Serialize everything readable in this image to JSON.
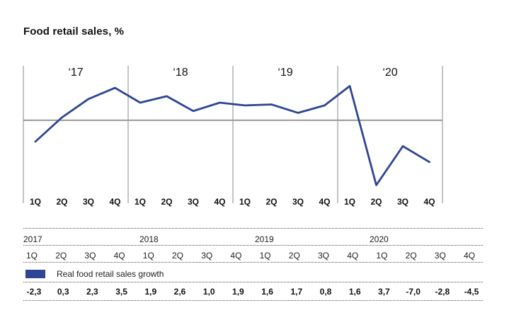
{
  "colors": {
    "line": "#2E4593",
    "frame": "#888888",
    "zero": "#999999"
  },
  "chart_data": {
    "type": "line",
    "title": "Food retail sales, %",
    "year_labels": [
      "‘17",
      "‘18",
      "‘19",
      "‘20"
    ],
    "categories": [
      "1Q",
      "2Q",
      "3Q",
      "4Q",
      "1Q",
      "2Q",
      "3Q",
      "4Q",
      "1Q",
      "2Q",
      "3Q",
      "4Q",
      "1Q",
      "2Q",
      "3Q",
      "4Q"
    ],
    "series": [
      {
        "name": "Real food retail sales growth",
        "values": [
          -2.3,
          0.3,
          2.3,
          3.5,
          1.9,
          2.6,
          1.0,
          1.9,
          1.6,
          1.7,
          0.8,
          1.6,
          3.7,
          -7.0,
          -2.8,
          -4.5
        ]
      }
    ],
    "ylim": [
      -7.5,
      4.5
    ],
    "grid": false
  },
  "table": {
    "years": [
      "2017",
      "2018",
      "2019",
      "2020"
    ],
    "quarters": [
      "1Q",
      "2Q",
      "3Q",
      "4Q",
      "1Q",
      "2Q",
      "3Q",
      "4Q",
      "1Q",
      "2Q",
      "3Q",
      "4Q",
      "1Q",
      "2Q",
      "3Q",
      "4Q"
    ],
    "legend": "Real food retail sales growth",
    "values": [
      "-2,3",
      "0,3",
      "2,3",
      "3,5",
      "1,9",
      "2,6",
      "1,0",
      "1,9",
      "1,6",
      "1,7",
      "0,8",
      "1,6",
      "3,7",
      "-7,0",
      "-2,8",
      "-4,5"
    ]
  }
}
